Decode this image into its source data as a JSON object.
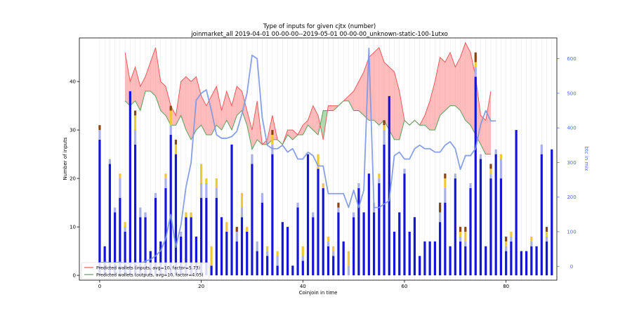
{
  "chart_data": {
    "type": "bar",
    "title": "Type of inputs for given cjtx (number)",
    "subtitle": "joinmarket_all 2019-04-01 00-00-00--2019-05-01 00-00-00_unknown-static-100-1utxo",
    "xlabel": "Coinjoin in time",
    "ylabel": "Number of inputs",
    "y2label": "btc in mix",
    "xlim": [
      -4,
      90
    ],
    "ylim": [
      -1,
      49
    ],
    "y2lim": [
      -40,
      660
    ],
    "x_ticks": [
      0,
      20,
      40,
      60,
      80
    ],
    "y_ticks": [
      0,
      10,
      20,
      30,
      40
    ],
    "y2_ticks": [
      0,
      100,
      200,
      300,
      400,
      500,
      600
    ],
    "x_grid": true,
    "y_grid": false,
    "legend_position": "bottom-left",
    "legend": [
      {
        "label": "Predicted wallets (inputs, avg=10, factor=5.73)",
        "color": "#ee5a5a"
      },
      {
        "label": "Predicted wallets (outputs, avg=10, factor=4.05)",
        "color": "#5aa05a"
      }
    ],
    "bar_colors": [
      "#1515d8",
      "#aab0e8",
      "#f0c832",
      "#f5b0a0",
      "#8b4513"
    ],
    "bars": [
      [
        28,
        2,
        0,
        0,
        1
      ],
      [
        6,
        0,
        0,
        0,
        0
      ],
      [
        23,
        1,
        0,
        0,
        0
      ],
      [
        13,
        1,
        0,
        0,
        0
      ],
      [
        16,
        4,
        1,
        0,
        0
      ],
      [
        9,
        1,
        1,
        0,
        0
      ],
      [
        38,
        0,
        0,
        0,
        0
      ],
      [
        27,
        3,
        3,
        0,
        1
      ],
      [
        12,
        2,
        0,
        0,
        0
      ],
      [
        12,
        1,
        0,
        0,
        0
      ],
      [
        5,
        0,
        0,
        0,
        0
      ],
      [
        16,
        1,
        0,
        0,
        0
      ],
      [
        7,
        0,
        0,
        0,
        0
      ],
      [
        18,
        2,
        1,
        0,
        0
      ],
      [
        29,
        2,
        3,
        0,
        1
      ],
      [
        25,
        0,
        2,
        0,
        1
      ],
      [
        8,
        1,
        0,
        0,
        0
      ],
      [
        12,
        0,
        1,
        0,
        0
      ],
      [
        12,
        0,
        1,
        0,
        0
      ],
      [
        8,
        0,
        0,
        0,
        0
      ],
      [
        16,
        3,
        4,
        0,
        0
      ],
      [
        16,
        3,
        1,
        0,
        0
      ],
      [
        2,
        0,
        4,
        0,
        0
      ],
      [
        16,
        2,
        2,
        0,
        0
      ],
      [
        12,
        0,
        0,
        0,
        0
      ],
      [
        9,
        0,
        2,
        0,
        0
      ],
      [
        27,
        0,
        0,
        0,
        0
      ],
      [
        7,
        2,
        0,
        0,
        1
      ],
      [
        12,
        2,
        3,
        0,
        0
      ],
      [
        9,
        0,
        1,
        0,
        0
      ],
      [
        23,
        2,
        0,
        0,
        0
      ],
      [
        5,
        2,
        0,
        0,
        0
      ],
      [
        15,
        2,
        0,
        0,
        0
      ],
      [
        4,
        1,
        1,
        0,
        0
      ],
      [
        25,
        2,
        2,
        0,
        1
      ],
      [
        2,
        2,
        1,
        0,
        0
      ],
      [
        11,
        0,
        0,
        0,
        0
      ],
      [
        10,
        0,
        0,
        0,
        0
      ],
      [
        2,
        0,
        0,
        0,
        0
      ],
      [
        14,
        1,
        0,
        0,
        0
      ],
      [
        3,
        1,
        2,
        0,
        0
      ],
      [
        25,
        0,
        0,
        0,
        0
      ],
      [
        12,
        1,
        0,
        0,
        0
      ],
      [
        22,
        0,
        3,
        0,
        0
      ],
      [
        18,
        0,
        1,
        0,
        0
      ],
      [
        6,
        1,
        1,
        0,
        0
      ],
      [
        4,
        1,
        1,
        0,
        0
      ],
      [
        13,
        1,
        0,
        0,
        1
      ],
      [
        7,
        0,
        0,
        0,
        0
      ],
      [
        0,
        2,
        3,
        0,
        0
      ],
      [
        12,
        1,
        0,
        0,
        0
      ],
      [
        18,
        1,
        0,
        0,
        0
      ],
      [
        13,
        0,
        0,
        0,
        0
      ],
      [
        21,
        0,
        0,
        0,
        0
      ],
      [
        13,
        1,
        1,
        0,
        0
      ],
      [
        19,
        1,
        1,
        0,
        0
      ],
      [
        27,
        3,
        1,
        0,
        1
      ],
      [
        37,
        0,
        0,
        0,
        0
      ],
      [
        9,
        0,
        0,
        0,
        0
      ],
      [
        13,
        0,
        0,
        0,
        0
      ],
      [
        21,
        1,
        0,
        0,
        0
      ],
      [
        9,
        0,
        0,
        0,
        0
      ],
      [
        12,
        0,
        0,
        0,
        0
      ],
      [
        4,
        0,
        0,
        0,
        0
      ],
      [
        7,
        0,
        0,
        0,
        0
      ],
      [
        7,
        0,
        0,
        0,
        0
      ],
      [
        7,
        0,
        0,
        0,
        0
      ],
      [
        11,
        2,
        0,
        0,
        2
      ],
      [
        15,
        3,
        2,
        0,
        1
      ],
      [
        6,
        0,
        0,
        0,
        0
      ],
      [
        20,
        1,
        0,
        0,
        0
      ],
      [
        7,
        1,
        1,
        0,
        1
      ],
      [
        6,
        1,
        2,
        0,
        1
      ],
      [
        18,
        1,
        0,
        0,
        0
      ],
      [
        41,
        2,
        1,
        0,
        2
      ],
      [
        24,
        1,
        0,
        0,
        0
      ],
      [
        6,
        0,
        0,
        0,
        0
      ],
      [
        20,
        1,
        1,
        0,
        1
      ],
      [
        25,
        1,
        0,
        0,
        0
      ],
      [
        20,
        4,
        1,
        0,
        0
      ],
      [
        5,
        1,
        1,
        0,
        1
      ],
      [
        7,
        1,
        1,
        0,
        0
      ],
      [
        30,
        0,
        0,
        0,
        0
      ],
      [
        5,
        0,
        0,
        0,
        0
      ],
      [
        5,
        0,
        0,
        0,
        0
      ],
      [
        6,
        1,
        1,
        0,
        0
      ],
      [
        6,
        0,
        0,
        0,
        0
      ],
      [
        25,
        2,
        0,
        0,
        0
      ],
      [
        7,
        1,
        1,
        0,
        1
      ],
      [
        26,
        0,
        0,
        0,
        0
      ]
    ],
    "bar_start_x": 0,
    "band_x_start": 5,
    "band_inputs": [
      46,
      40,
      43,
      39,
      41,
      44,
      47,
      40,
      39,
      35,
      33,
      40,
      41,
      40,
      41,
      37,
      35,
      37,
      39,
      34,
      38,
      35,
      39,
      38,
      34,
      30,
      36,
      27,
      28,
      33,
      28,
      27,
      30,
      30,
      29,
      31,
      32,
      35,
      33,
      28,
      35,
      35,
      35,
      36,
      37,
      38,
      40,
      42,
      45,
      46,
      47,
      44,
      43,
      42,
      38,
      32,
      31,
      32,
      31,
      33,
      36,
      40,
      45,
      44,
      46,
      43,
      45,
      48,
      46,
      41,
      33,
      32,
      38
    ],
    "band_outputs": [
      36,
      35,
      36,
      34,
      38,
      38,
      37,
      34,
      33,
      31,
      31,
      33,
      30,
      28,
      30,
      31,
      29,
      29,
      31,
      30,
      32,
      30,
      33,
      34,
      31,
      26,
      28,
      27,
      27,
      28,
      28,
      27,
      29,
      28,
      29,
      29,
      31,
      30,
      29,
      34,
      34,
      34,
      35,
      36,
      36,
      34,
      34,
      33,
      32,
      32,
      31,
      32,
      30,
      28,
      28,
      32,
      31,
      32,
      31,
      31,
      30,
      30,
      33,
      34,
      35,
      35,
      34,
      32,
      31,
      29,
      27,
      25,
      25
    ],
    "btc_line": [
      10,
      12,
      10,
      10,
      12,
      8,
      8,
      10,
      8,
      15,
      20,
      30,
      45,
      80,
      150,
      55,
      120,
      230,
      300,
      480,
      500,
      510,
      450,
      380,
      370,
      370,
      375,
      390,
      440,
      500,
      610,
      600,
      430,
      350,
      340,
      340,
      350,
      330,
      340,
      310,
      310,
      330,
      320,
      290,
      290,
      210,
      210,
      210,
      210,
      170,
      220,
      170,
      220,
      630,
      170,
      170,
      180,
      190,
      320,
      330,
      310,
      310,
      340,
      350,
      340,
      340,
      330,
      330,
      350,
      360,
      340,
      280,
      320,
      320,
      340,
      410,
      450,
      420,
      420
    ]
  }
}
